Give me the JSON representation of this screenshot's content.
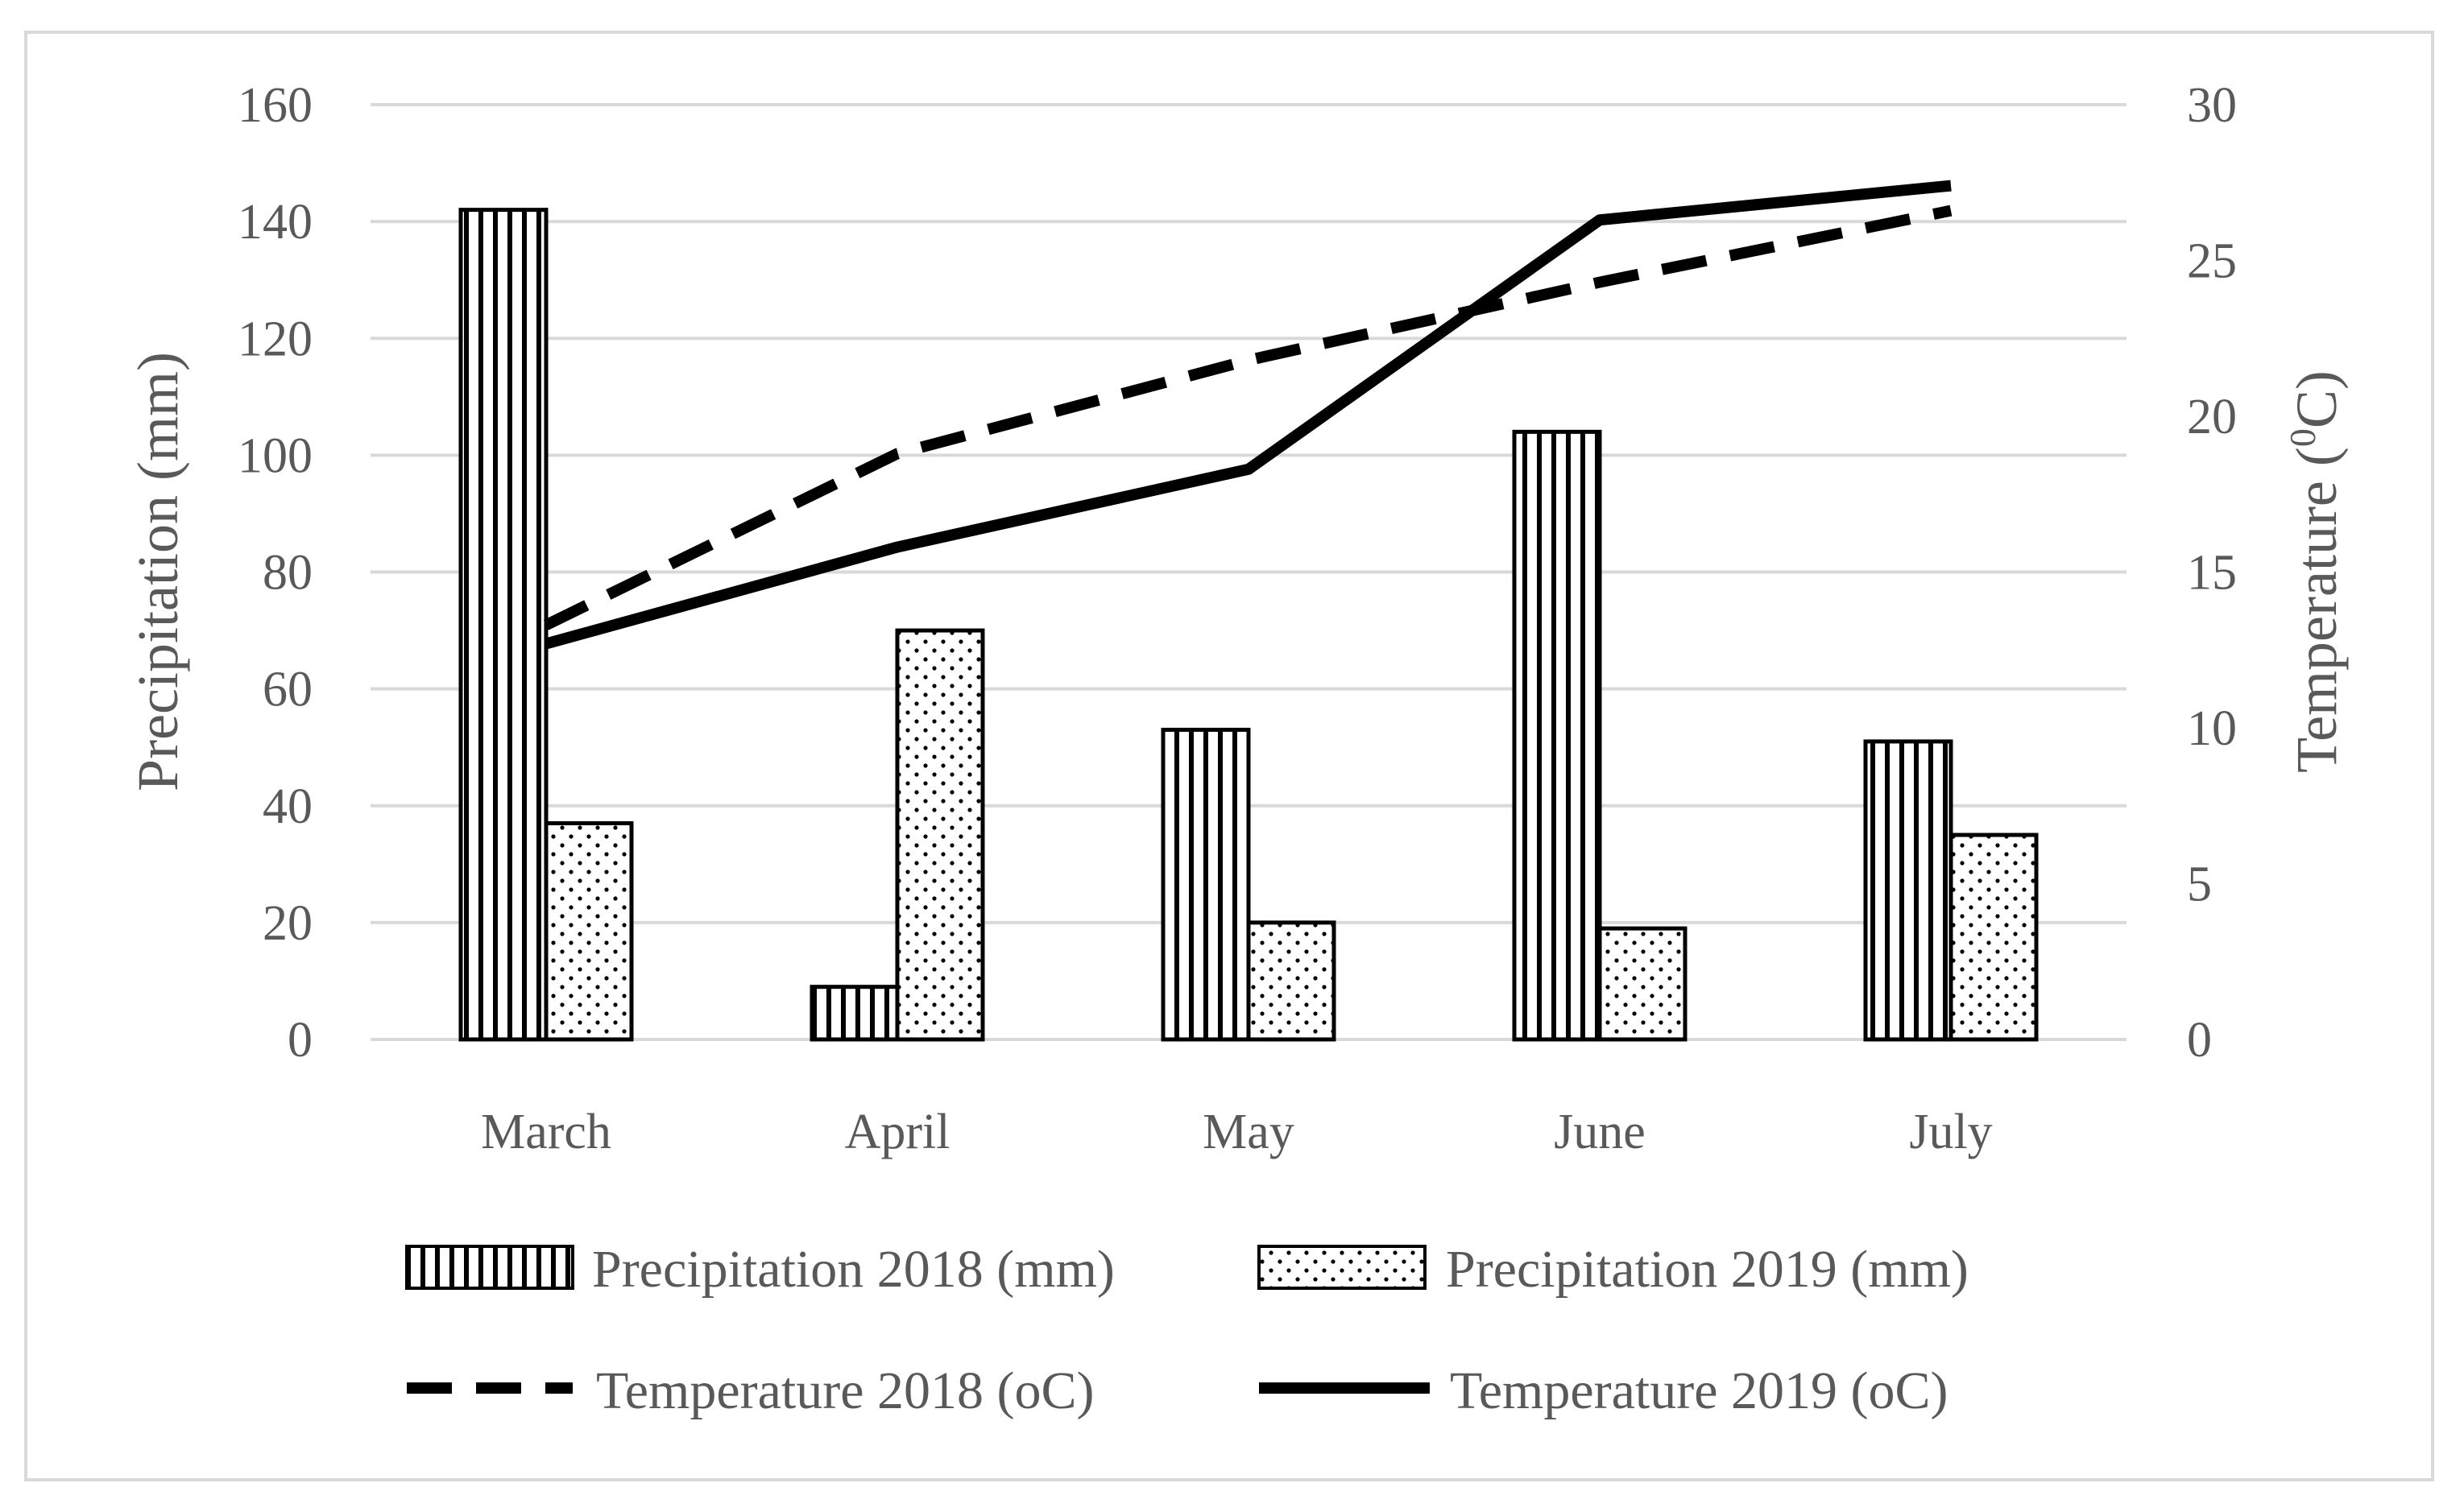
{
  "chart_data": {
    "type": "bar",
    "categories": [
      "March",
      "April",
      "May",
      "June",
      "July"
    ],
    "series": [
      {
        "name": "Precipitation 2018 (mm)",
        "kind": "bar",
        "axis": "left",
        "pattern": "vertical-stripes",
        "values": [
          142,
          9,
          53,
          104,
          51
        ]
      },
      {
        "name": "Precipitation 2019 (mm)",
        "kind": "bar",
        "axis": "left",
        "pattern": "dots",
        "values": [
          37,
          70,
          20,
          19,
          35
        ]
      },
      {
        "name": "Temperature 2018 (oC)",
        "kind": "line",
        "axis": "right",
        "dash": "dashed",
        "values": [
          13.3,
          18.8,
          21.8,
          24.3,
          26.6
        ]
      },
      {
        "name": "Temperature 2019 (oC)",
        "kind": "line",
        "axis": "right",
        "dash": "solid",
        "values": [
          12.7,
          15.8,
          18.3,
          26.3,
          27.4
        ]
      }
    ],
    "y_left": {
      "label": "Precipitation (mm)",
      "range": [
        0,
        160
      ],
      "ticks": [
        "0",
        "20",
        "40",
        "60",
        "80",
        "100",
        "120",
        "140",
        "160"
      ]
    },
    "y_right": {
      "label_main": "Temperature (",
      "label_sup": "0",
      "label_end": "C)",
      "range": [
        0,
        30
      ],
      "ticks": [
        "0",
        "5",
        "10",
        "15",
        "20",
        "25",
        "30"
      ]
    },
    "grid": true,
    "legend_position": "bottom",
    "colors": {
      "bar_stroke": "#000000",
      "line": "#000000",
      "grid": "#d9d9d9",
      "text": "#595959"
    }
  }
}
